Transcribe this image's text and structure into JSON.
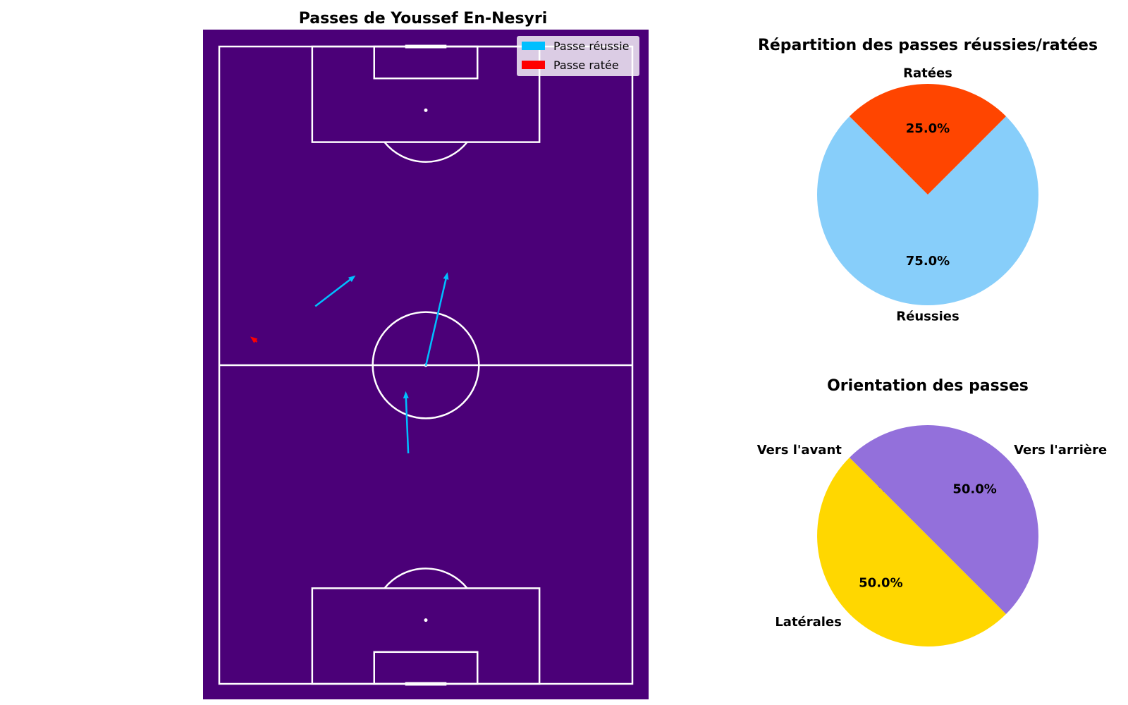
{
  "chart_data": [
    {
      "type": "pass_map",
      "title": "Passes de Youssef En-Nesyri",
      "pitch_color": "#4b0078",
      "line_color": "#ffffff",
      "pitch_dims": [
        80,
        120
      ],
      "legend": [
        {
          "label": "Passe réussie",
          "color": "#00bfff"
        },
        {
          "label": "Passe ratée",
          "color": "#ff0000"
        }
      ],
      "legend_position": "top-right",
      "passes": [
        {
          "x_start": 36.6,
          "y_start": 76.6,
          "x_end": 36.1,
          "y_end": 64.9,
          "outcome": "success"
        },
        {
          "x_start": 40.0,
          "y_start": 60.1,
          "x_end": 44.2,
          "y_end": 42.5,
          "outcome": "success"
        },
        {
          "x_start": 18.6,
          "y_start": 48.9,
          "x_end": 26.4,
          "y_end": 43.1,
          "outcome": "success"
        },
        {
          "x_start": 7.3,
          "y_start": 55.6,
          "x_end": 6.0,
          "y_end": 54.6,
          "outcome": "fail"
        }
      ]
    },
    {
      "type": "pie",
      "title": "Répartition des passes réussies/ratées",
      "labels": [
        "Réussies",
        "Ratées"
      ],
      "values": [
        75.0,
        25.0
      ],
      "pct_labels": [
        "75.0%",
        "25.0%"
      ],
      "colors": [
        "#87cefa",
        "#ff4500"
      ],
      "start_angle": 135
    },
    {
      "type": "pie",
      "title": "Orientation des passes",
      "labels": [
        "Vers l'avant",
        "Latérales",
        "Vers l'arrière"
      ],
      "values": [
        0.0,
        50.0,
        50.0
      ],
      "pct_labels": [
        "0.0%",
        "50.0%",
        "50.0%"
      ],
      "colors": [
        "#32cd32",
        "#ffd700",
        "#9370db"
      ],
      "start_angle": 135
    }
  ]
}
